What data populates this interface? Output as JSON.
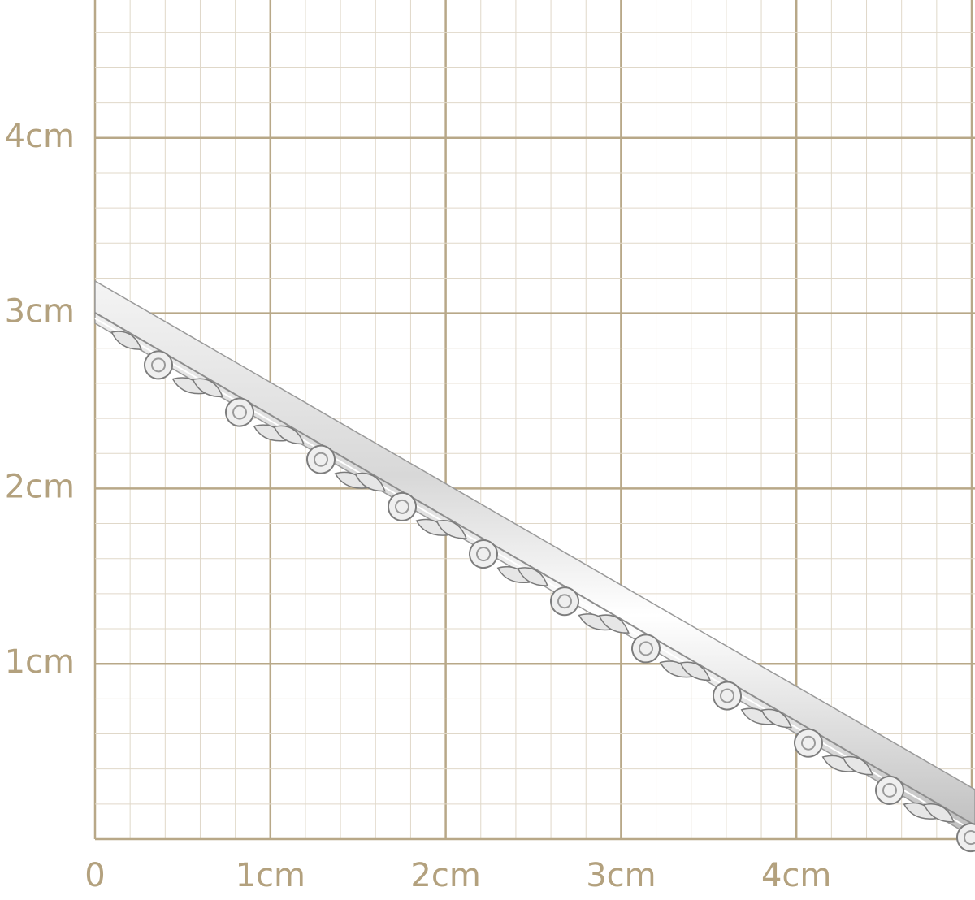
{
  "x_labels": [
    "0",
    "1cm",
    "2cm",
    "3cm",
    "4cm"
  ],
  "y_labels": [
    "1cm",
    "2cm",
    "3cm",
    "4cm"
  ]
}
